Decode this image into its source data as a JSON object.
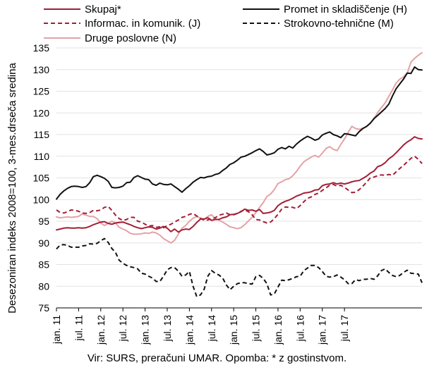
{
  "chart_data": {
    "type": "line",
    "title": "",
    "ylabel": "Desezoniran indeks 2008=100, 3-mes.drseča sredina",
    "xlabel": "",
    "ylim": [
      75,
      135
    ],
    "yticks": [
      75,
      80,
      85,
      90,
      95,
      100,
      105,
      110,
      115,
      120,
      125,
      130,
      135
    ],
    "grid": "horizontal",
    "legend_placement": "top",
    "x_start": "jan. 11",
    "x_ticks": [
      "jan. 11",
      "jul. 11",
      "jan. 12",
      "jul. 12",
      "jan. 13",
      "jul. 13",
      "jan. 14",
      "jul. 14",
      "jan. 15",
      "jul. 15",
      "jan. 16",
      "jul. 16",
      "jan. 17",
      "jul. 17"
    ],
    "series": [
      {
        "name": "Skupaj*",
        "color": "#a31e36",
        "style": "solid",
        "values": [
          93.0,
          93.2,
          93.4,
          93.5,
          93.4,
          93.4,
          93.5,
          93.4,
          93.5,
          93.8,
          94.2,
          94.5,
          94.8,
          94.9,
          94.5,
          94.3,
          94.6,
          94.7,
          94.8,
          94.5,
          94.2,
          93.8,
          93.5,
          93.3,
          93.5,
          93.7,
          93.6,
          93.2,
          93.4,
          93.8,
          93.4,
          92.6,
          93.2,
          92.5,
          93.0,
          93.2,
          93.1,
          93.8,
          94.7,
          95.5,
          95.5,
          95.8,
          95.2,
          95.4,
          95.4,
          95.8,
          96.0,
          96.5,
          96.6,
          96.8,
          97.2,
          97.8,
          97.5,
          97.6,
          97.3,
          97.7,
          96.8,
          96.9,
          97.1,
          97.5,
          98.6,
          99.2,
          99.6,
          99.9,
          100.3,
          100.8,
          101.1,
          101.5,
          101.6,
          101.8,
          102.2,
          102.3,
          103.2,
          103.5,
          103.6,
          103.9,
          103.6,
          103.8,
          103.6,
          103.8,
          104.1,
          104.3,
          104.4,
          104.9,
          105.4,
          106.1,
          106.6,
          107.6,
          107.9,
          108.5,
          109.4,
          110.0,
          110.8,
          111.7,
          112.6,
          113.3,
          113.8,
          114.5,
          114.1,
          114.0
        ]
      },
      {
        "name": "Promet in skladiščenje (H)",
        "color": "#111111",
        "style": "solid",
        "values": [
          100.1,
          101.2,
          102.0,
          102.6,
          103.0,
          103.1,
          103.0,
          102.8,
          103.0,
          103.9,
          105.3,
          105.6,
          105.3,
          104.9,
          104.2,
          102.8,
          102.7,
          102.8,
          103.1,
          103.9,
          104.0,
          105.1,
          105.5,
          105.1,
          104.7,
          104.6,
          103.6,
          103.3,
          103.8,
          103.5,
          103.4,
          103.6,
          103.0,
          102.4,
          101.7,
          102.5,
          103.2,
          104.0,
          104.6,
          105.1,
          105.0,
          105.3,
          105.4,
          105.8,
          106.0,
          106.7,
          107.3,
          108.1,
          108.5,
          109.1,
          109.8,
          110.0,
          110.4,
          110.8,
          111.3,
          111.7,
          111.1,
          110.3,
          110.5,
          110.8,
          111.6,
          112.0,
          111.7,
          112.3,
          111.9,
          112.8,
          113.5,
          114.1,
          114.6,
          114.2,
          113.7,
          114.0,
          114.9,
          115.3,
          115.6,
          115.0,
          114.7,
          114.3,
          115.2,
          115.1,
          114.9,
          114.7,
          115.7,
          116.4,
          116.9,
          117.6,
          118.7,
          119.4,
          120.2,
          121.0,
          122.0,
          123.9,
          125.6,
          126.7,
          127.8,
          129.2,
          129.1,
          130.6,
          130.0,
          129.9
        ]
      },
      {
        "name": "Informac. in komunik. (J)",
        "color": "#a31e36",
        "style": "dashed",
        "values": [
          97.6,
          97.0,
          96.9,
          97.2,
          97.6,
          97.5,
          97.3,
          96.9,
          96.8,
          97.0,
          97.5,
          97.4,
          97.6,
          98.2,
          98.4,
          97.5,
          96.4,
          95.6,
          95.2,
          95.4,
          95.9,
          95.9,
          95.0,
          94.8,
          94.3,
          93.9,
          94.0,
          93.6,
          93.7,
          93.5,
          94.0,
          94.3,
          94.8,
          95.3,
          95.9,
          96.1,
          96.6,
          96.8,
          96.2,
          95.7,
          95.2,
          95.3,
          95.6,
          95.8,
          96.4,
          96.6,
          96.9,
          96.5,
          96.5,
          96.8,
          97.3,
          97.6,
          97.2,
          96.5,
          95.4,
          95.3,
          94.9,
          94.6,
          94.8,
          95.6,
          96.6,
          97.8,
          98.3,
          98.2,
          98.2,
          97.9,
          98.6,
          99.5,
          100.3,
          100.6,
          101.2,
          101.5,
          102.1,
          102.7,
          103.3,
          103.5,
          103.1,
          103.3,
          102.8,
          102.2,
          101.6,
          101.7,
          102.3,
          103.1,
          104.0,
          105.0,
          105.2,
          105.5,
          105.7,
          105.6,
          105.8,
          105.6,
          106.4,
          107.2,
          107.9,
          108.7,
          109.5,
          110.0,
          109.3,
          108.3
        ]
      },
      {
        "name": "Strokovno-tehnične (M)",
        "color": "#111111",
        "style": "dashed",
        "values": [
          88.6,
          89.5,
          89.6,
          89.4,
          89.0,
          89.0,
          89.0,
          89.3,
          89.4,
          89.8,
          89.7,
          89.9,
          90.5,
          91.0,
          90.1,
          88.7,
          87.8,
          86.0,
          85.3,
          84.8,
          84.5,
          84.3,
          84.0,
          83.0,
          82.8,
          82.3,
          81.9,
          81.1,
          81.1,
          82.3,
          83.8,
          84.3,
          84.3,
          83.5,
          82.3,
          82.6,
          83.4,
          80.0,
          77.6,
          78.0,
          79.3,
          82.3,
          83.6,
          83.0,
          82.6,
          81.9,
          80.3,
          79.2,
          80.0,
          80.6,
          80.8,
          80.8,
          80.6,
          80.5,
          82.2,
          82.5,
          81.8,
          80.6,
          78.0,
          78.2,
          79.8,
          81.4,
          81.3,
          81.5,
          81.8,
          82.2,
          82.3,
          83.6,
          84.2,
          84.8,
          84.8,
          84.3,
          83.4,
          82.3,
          82.1,
          82.2,
          82.6,
          82.1,
          81.5,
          80.6,
          80.6,
          81.5,
          81.3,
          81.6,
          81.6,
          81.8,
          81.6,
          82.4,
          83.6,
          84.0,
          83.2,
          82.5,
          82.2,
          82.5,
          83.2,
          83.7,
          83.0,
          82.9,
          82.8,
          80.8
        ]
      },
      {
        "name": "Druge poslovne (N)",
        "color": "#e5a2a6",
        "style": "solid",
        "values": [
          96.0,
          95.8,
          95.9,
          96.0,
          95.9,
          96.0,
          96.1,
          96.7,
          96.4,
          96.1,
          96.1,
          95.6,
          94.6,
          94.0,
          94.5,
          95.0,
          94.6,
          93.6,
          93.2,
          92.8,
          92.2,
          92.0,
          92.0,
          92.1,
          92.3,
          92.2,
          92.5,
          92.3,
          91.8,
          91.0,
          90.5,
          90.0,
          90.6,
          92.0,
          93.4,
          94.0,
          95.0,
          95.7,
          96.1,
          95.7,
          95.4,
          96.1,
          96.5,
          95.6,
          95.3,
          94.8,
          94.3,
          93.7,
          93.5,
          93.3,
          93.5,
          94.2,
          95.1,
          95.9,
          97.0,
          98.2,
          99.3,
          100.7,
          101.3,
          102.3,
          103.7,
          104.1,
          104.6,
          104.8,
          105.5,
          106.5,
          107.7,
          108.7,
          109.3,
          109.8,
          110.2,
          109.8,
          110.7,
          111.8,
          112.2,
          111.6,
          111.3,
          112.7,
          114.0,
          115.5,
          116.9,
          116.4,
          116.2,
          116.5,
          116.8,
          117.7,
          118.6,
          120.1,
          121.2,
          122.3,
          123.8,
          125.3,
          126.9,
          127.8,
          128.3,
          129.2,
          131.7,
          132.6,
          133.3,
          133.9
        ]
      }
    ],
    "footnote": "Vir: SURS, preračuni UMAR. Opomba: * z gostinstvom."
  }
}
